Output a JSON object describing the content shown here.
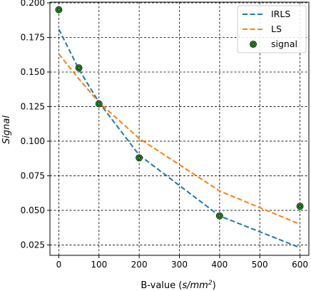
{
  "chart_data": {
    "type": "line",
    "title": "",
    "xlabel": "B-value (s/mm²)",
    "xlabel_parts": {
      "prefix": "B-value (",
      "unit": "s/mm",
      "sup": "2",
      "suffix": ")"
    },
    "ylabel": "Signal",
    "xlim": [
      -22,
      622
    ],
    "ylim": [
      0.0175,
      0.2005
    ],
    "xticks": [
      0,
      100,
      200,
      300,
      400,
      500,
      600
    ],
    "xtick_labels": [
      "0",
      "100",
      "200",
      "300",
      "400",
      "500",
      "600"
    ],
    "yticks": [
      0.025,
      0.05,
      0.075,
      0.1,
      0.125,
      0.15,
      0.175,
      0.2
    ],
    "ytick_labels": [
      "0.025",
      "0.050",
      "0.075",
      "0.100",
      "0.125",
      "0.150",
      "0.175",
      "0.200"
    ],
    "grid": true,
    "legend_position": "top-right",
    "series": [
      {
        "name": "IRLS",
        "kind": "dashed-line",
        "color": "#1f77b4",
        "x": [
          0,
          50,
          100,
          200,
          400,
          600
        ],
        "y": [
          0.181,
          0.152,
          0.128,
          0.09,
          0.046,
          0.023
        ]
      },
      {
        "name": "LS",
        "kind": "dashed-line",
        "color": "#ff7f0e",
        "x": [
          0,
          50,
          100,
          200,
          400,
          600
        ],
        "y": [
          0.163,
          0.145,
          0.128,
          0.102,
          0.064,
          0.04
        ]
      },
      {
        "name": "signal",
        "kind": "markers",
        "color": "#2ca02c",
        "edge_color": "#000000",
        "x": [
          0,
          50,
          100,
          200,
          400,
          600
        ],
        "y": [
          0.195,
          0.153,
          0.127,
          0.088,
          0.046,
          0.053
        ]
      }
    ]
  }
}
